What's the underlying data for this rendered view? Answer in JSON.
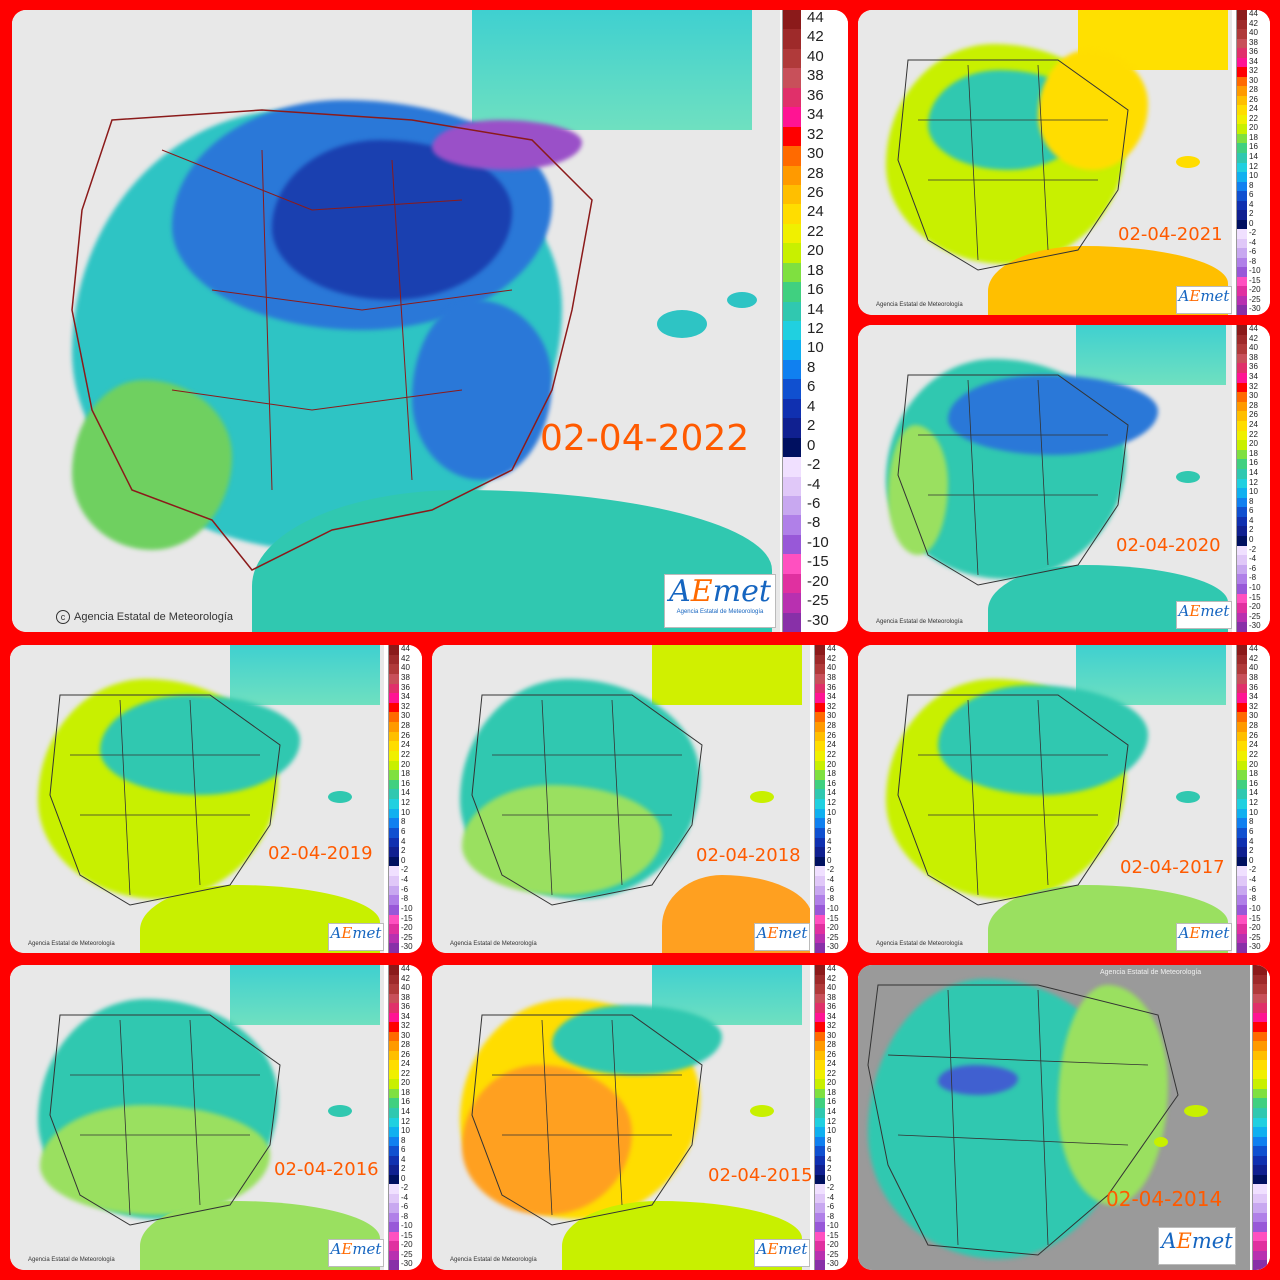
{
  "credit": "Agencia Estatal de Meteorología",
  "logo": {
    "a": "A",
    "e": "E",
    "rest": "met",
    "sub": "Agencia Estatal de Meteorología"
  },
  "legend": {
    "ticks": [
      "44",
      "42",
      "40",
      "38",
      "36",
      "34",
      "32",
      "30",
      "28",
      "26",
      "24",
      "22",
      "20",
      "18",
      "16",
      "14",
      "12",
      "10",
      "8",
      "6",
      "4",
      "2",
      "0",
      "-2",
      "-4",
      "-6",
      "-8",
      "-10",
      "-15",
      "-20",
      "-25",
      "-30"
    ],
    "colors": [
      "#8b1a1a",
      "#9e2a2a",
      "#b03a3a",
      "#c8505a",
      "#e0306a",
      "#ff1493",
      "#ff0000",
      "#ff6a00",
      "#ff9a00",
      "#ffbf00",
      "#ffdd00",
      "#f0f000",
      "#c8f000",
      "#7fe040",
      "#40d080",
      "#30c8b0",
      "#20d0e0",
      "#10b0f0",
      "#1080f0",
      "#1050d0",
      "#1030b0",
      "#102090",
      "#001060",
      "#f0e0ff",
      "#e0c8f8",
      "#c8a8f0",
      "#b080e8",
      "#9858d8",
      "#ff50c0",
      "#e030a0",
      "#b830b0",
      "#8830a8"
    ]
  },
  "panels": [
    {
      "date": "02-04-2022",
      "theme": "cold"
    },
    {
      "date": "02-04-2021",
      "theme": "warm"
    },
    {
      "date": "02-04-2020",
      "theme": "cool"
    },
    {
      "date": "02-04-2019",
      "theme": "mild"
    },
    {
      "date": "02-04-2018",
      "theme": "mild"
    },
    {
      "date": "02-04-2017",
      "theme": "mild"
    },
    {
      "date": "02-04-2016",
      "theme": "cool"
    },
    {
      "date": "02-04-2015",
      "theme": "hot"
    },
    {
      "date": "02-04-2014",
      "theme": "grey"
    }
  ]
}
